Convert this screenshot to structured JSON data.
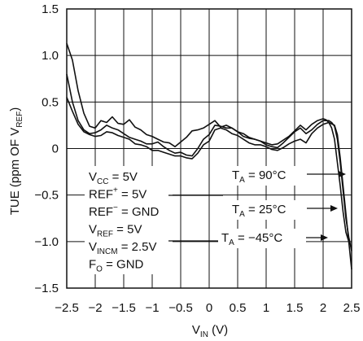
{
  "chart_data": {
    "type": "line",
    "xlabel": {
      "main": "V",
      "sub": "IN",
      "unit": " (V)"
    },
    "ylabel": {
      "pre": "TUE (ppm OF V",
      "sub": "REF",
      "post": ")"
    },
    "xlim": [
      -2.5,
      2.5
    ],
    "ylim": [
      -1.5,
      1.5
    ],
    "xticks": [
      -2.5,
      -2.0,
      -1.5,
      -1.0,
      -0.5,
      0,
      0.5,
      1.0,
      1.5,
      2.0,
      2.5
    ],
    "xtick_labels": [
      "−2.5",
      "−2",
      "−1.5",
      "−1",
      "−0.5",
      "0",
      "0.5",
      "1",
      "1.5",
      "2",
      "2.5"
    ],
    "yticks": [
      -1.5,
      -1.0,
      -0.5,
      0,
      0.5,
      1.0,
      1.5
    ],
    "ytick_labels": [
      "−1.5",
      "−1.0",
      "−0.5",
      "0",
      "0.5",
      "1.0",
      "1.5"
    ],
    "grid": true,
    "series": [
      {
        "name": "T_A = 90°C",
        "color": "#111111",
        "x": [
          -2.5,
          -2.4,
          -2.3,
          -2.2,
          -2.1,
          -2.0,
          -1.9,
          -1.8,
          -1.7,
          -1.6,
          -1.5,
          -1.4,
          -1.3,
          -1.2,
          -1.1,
          -1.0,
          -0.9,
          -0.8,
          -0.7,
          -0.6,
          -0.5,
          -0.4,
          -0.3,
          -0.2,
          -0.1,
          0.0,
          0.1,
          0.2,
          0.3,
          0.4,
          0.5,
          0.6,
          0.7,
          0.8,
          0.9,
          1.0,
          1.1,
          1.2,
          1.3,
          1.4,
          1.5,
          1.6,
          1.7,
          1.8,
          1.9,
          2.0,
          2.05,
          2.1,
          2.15,
          2.2,
          2.25,
          2.3,
          2.35,
          2.4,
          2.45
        ],
        "y": [
          1.13,
          0.95,
          0.62,
          0.38,
          0.24,
          0.22,
          0.3,
          0.28,
          0.34,
          0.27,
          0.26,
          0.31,
          0.23,
          0.2,
          0.15,
          0.13,
          0.1,
          0.07,
          0.06,
          0.02,
          0.07,
          0.12,
          0.19,
          0.2,
          0.22,
          0.26,
          0.3,
          0.23,
          0.25,
          0.22,
          0.18,
          0.13,
          0.11,
          0.1,
          0.08,
          0.06,
          0.04,
          0.05,
          0.09,
          0.13,
          0.19,
          0.25,
          0.2,
          0.26,
          0.3,
          0.32,
          0.31,
          0.28,
          0.22,
          0.1,
          -0.15,
          -0.4,
          -0.68,
          -0.9,
          -1.0
        ]
      },
      {
        "name": "T_A = 25°C",
        "color": "#111111",
        "x": [
          -2.5,
          -2.4,
          -2.3,
          -2.2,
          -2.1,
          -2.0,
          -1.9,
          -1.8,
          -1.7,
          -1.6,
          -1.5,
          -1.4,
          -1.3,
          -1.2,
          -1.1,
          -1.0,
          -0.9,
          -0.8,
          -0.7,
          -0.6,
          -0.5,
          -0.4,
          -0.3,
          -0.2,
          -0.1,
          0.0,
          0.1,
          0.2,
          0.3,
          0.4,
          0.5,
          0.6,
          0.7,
          0.8,
          0.9,
          1.0,
          1.1,
          1.2,
          1.3,
          1.4,
          1.5,
          1.6,
          1.7,
          1.8,
          1.9,
          2.0,
          2.1,
          2.15,
          2.2,
          2.25,
          2.3,
          2.35,
          2.4,
          2.45,
          2.5
        ],
        "y": [
          0.8,
          0.5,
          0.3,
          0.2,
          0.16,
          0.17,
          0.2,
          0.25,
          0.22,
          0.2,
          0.16,
          0.12,
          0.1,
          0.08,
          0.05,
          0.05,
          0.07,
          0.02,
          -0.02,
          -0.05,
          -0.04,
          -0.07,
          -0.08,
          0.0,
          0.1,
          0.15,
          0.25,
          0.24,
          0.22,
          0.22,
          0.18,
          0.16,
          0.12,
          0.1,
          0.08,
          0.04,
          0.02,
          0.01,
          0.06,
          0.12,
          0.18,
          0.22,
          0.16,
          0.2,
          0.26,
          0.3,
          0.3,
          0.28,
          0.24,
          0.1,
          -0.15,
          -0.45,
          -0.75,
          -0.95,
          -1.1
        ]
      },
      {
        "name": "T_A = −45°C",
        "color": "#111111",
        "x": [
          -2.5,
          -2.4,
          -2.3,
          -2.2,
          -2.1,
          -2.0,
          -1.9,
          -1.8,
          -1.7,
          -1.6,
          -1.5,
          -1.4,
          -1.3,
          -1.2,
          -1.1,
          -1.0,
          -0.9,
          -0.8,
          -0.7,
          -0.6,
          -0.5,
          -0.4,
          -0.3,
          -0.2,
          -0.1,
          0.0,
          0.1,
          0.2,
          0.3,
          0.4,
          0.5,
          0.6,
          0.7,
          0.8,
          0.9,
          1.0,
          1.1,
          1.2,
          1.3,
          1.4,
          1.5,
          1.6,
          1.7,
          1.8,
          1.9,
          2.0,
          2.1,
          2.2,
          2.25,
          2.3,
          2.35,
          2.4,
          2.45,
          2.5
        ],
        "y": [
          0.55,
          0.4,
          0.26,
          0.18,
          0.15,
          0.13,
          0.14,
          0.18,
          0.17,
          0.14,
          0.12,
          0.1,
          0.05,
          0.04,
          0.02,
          -0.02,
          -0.02,
          -0.04,
          -0.06,
          -0.08,
          -0.08,
          -0.1,
          -0.11,
          -0.05,
          0.04,
          0.08,
          0.2,
          0.22,
          0.2,
          0.16,
          0.14,
          0.1,
          0.06,
          0.04,
          0.04,
          0.02,
          -0.01,
          -0.02,
          0.01,
          0.05,
          0.08,
          0.1,
          0.06,
          0.16,
          0.22,
          0.26,
          0.28,
          0.25,
          0.15,
          -0.1,
          -0.4,
          -0.7,
          -1.0,
          -1.3
        ]
      }
    ],
    "annotations": {
      "conditions": [
        {
          "main": "V",
          "sub": "CC",
          "rest": " = 5V"
        },
        {
          "main": "REF",
          "sup": "+",
          "rest": " = 5V"
        },
        {
          "main": "REF",
          "sup": "−",
          "rest": " = GND"
        },
        {
          "main": "V",
          "sub": "REF",
          "rest": " = 5V"
        },
        {
          "main": "V",
          "sub": "INCM",
          "rest": " = 2.5V"
        },
        {
          "main": "F",
          "sub": "O",
          "rest": " = GND"
        }
      ],
      "curve_labels": [
        {
          "main": "T",
          "sub": "A",
          "rest": " = 90°C"
        },
        {
          "main": "T",
          "sub": "A",
          "rest": " = 25°C"
        },
        {
          "main": "T",
          "sub": "A",
          "rest": " = −45°C"
        }
      ]
    }
  }
}
